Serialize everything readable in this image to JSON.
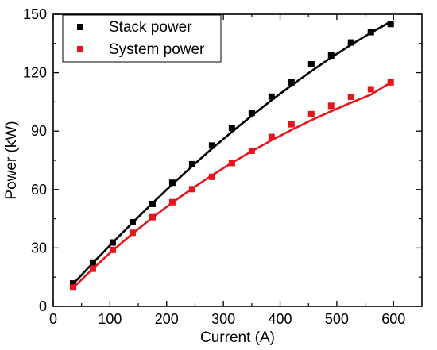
{
  "chart_data": {
    "type": "line",
    "xlabel": "Current (A)",
    "ylabel": "Power (kW)",
    "xlim": [
      0,
      650
    ],
    "ylim": [
      0,
      150
    ],
    "xticks": [
      0,
      100,
      200,
      300,
      400,
      500,
      600
    ],
    "yticks": [
      0,
      30,
      60,
      90,
      120,
      150
    ],
    "xtick_labels": [
      "0",
      "100",
      "200",
      "300",
      "400",
      "500",
      "600"
    ],
    "ytick_labels": [
      "0",
      "30",
      "60",
      "90",
      "120",
      "150"
    ],
    "grid": false,
    "legend_position": "top-left",
    "series": [
      {
        "name": "Stack power",
        "color": "#000000",
        "marker": "square",
        "points": [
          [
            35,
            11.8
          ],
          [
            70,
            22.5
          ],
          [
            105,
            32.8
          ],
          [
            140,
            43.2
          ],
          [
            175,
            52.6
          ],
          [
            210,
            63.5
          ],
          [
            245,
            73.0
          ],
          [
            280,
            82.6
          ],
          [
            315,
            91.6
          ],
          [
            350,
            99.4
          ],
          [
            385,
            107.7
          ],
          [
            420,
            115.0
          ],
          [
            455,
            124.3
          ],
          [
            490,
            128.8
          ],
          [
            525,
            135.5
          ],
          [
            560,
            140.8
          ],
          [
            595,
            145.0
          ]
        ],
        "fit": [
          [
            35,
            11.5
          ],
          [
            70,
            22.3
          ],
          [
            105,
            32.8
          ],
          [
            140,
            43.0
          ],
          [
            175,
            53.0
          ],
          [
            210,
            62.7
          ],
          [
            245,
            72.0
          ],
          [
            280,
            81.0
          ],
          [
            315,
            89.6
          ],
          [
            350,
            97.9
          ],
          [
            385,
            105.9
          ],
          [
            420,
            113.5
          ],
          [
            455,
            120.8
          ],
          [
            490,
            127.8
          ],
          [
            525,
            134.3
          ],
          [
            560,
            140.5
          ],
          [
            595,
            146.2
          ]
        ]
      },
      {
        "name": "System power",
        "color": "#e8141c",
        "marker": "square",
        "points": [
          [
            35,
            9.7
          ],
          [
            70,
            19.3
          ],
          [
            105,
            29.0
          ],
          [
            140,
            37.8
          ],
          [
            175,
            45.8
          ],
          [
            210,
            53.5
          ],
          [
            245,
            60.2
          ],
          [
            280,
            66.5
          ],
          [
            315,
            73.6
          ],
          [
            350,
            79.9
          ],
          [
            385,
            87.0
          ],
          [
            420,
            93.5
          ],
          [
            455,
            98.7
          ],
          [
            490,
            103.0
          ],
          [
            525,
            107.6
          ],
          [
            560,
            111.5
          ],
          [
            595,
            115.0
          ]
        ],
        "fit": [
          [
            35,
            9.5
          ],
          [
            70,
            19.4
          ],
          [
            105,
            28.7
          ],
          [
            140,
            37.4
          ],
          [
            175,
            45.6
          ],
          [
            210,
            53.3
          ],
          [
            245,
            60.5
          ],
          [
            280,
            67.3
          ],
          [
            315,
            73.7
          ],
          [
            350,
            79.7
          ],
          [
            385,
            85.3
          ],
          [
            420,
            90.6
          ],
          [
            455,
            95.6
          ],
          [
            490,
            100.2
          ],
          [
            525,
            104.6
          ],
          [
            560,
            108.7
          ],
          [
            595,
            115.0
          ]
        ]
      }
    ]
  }
}
